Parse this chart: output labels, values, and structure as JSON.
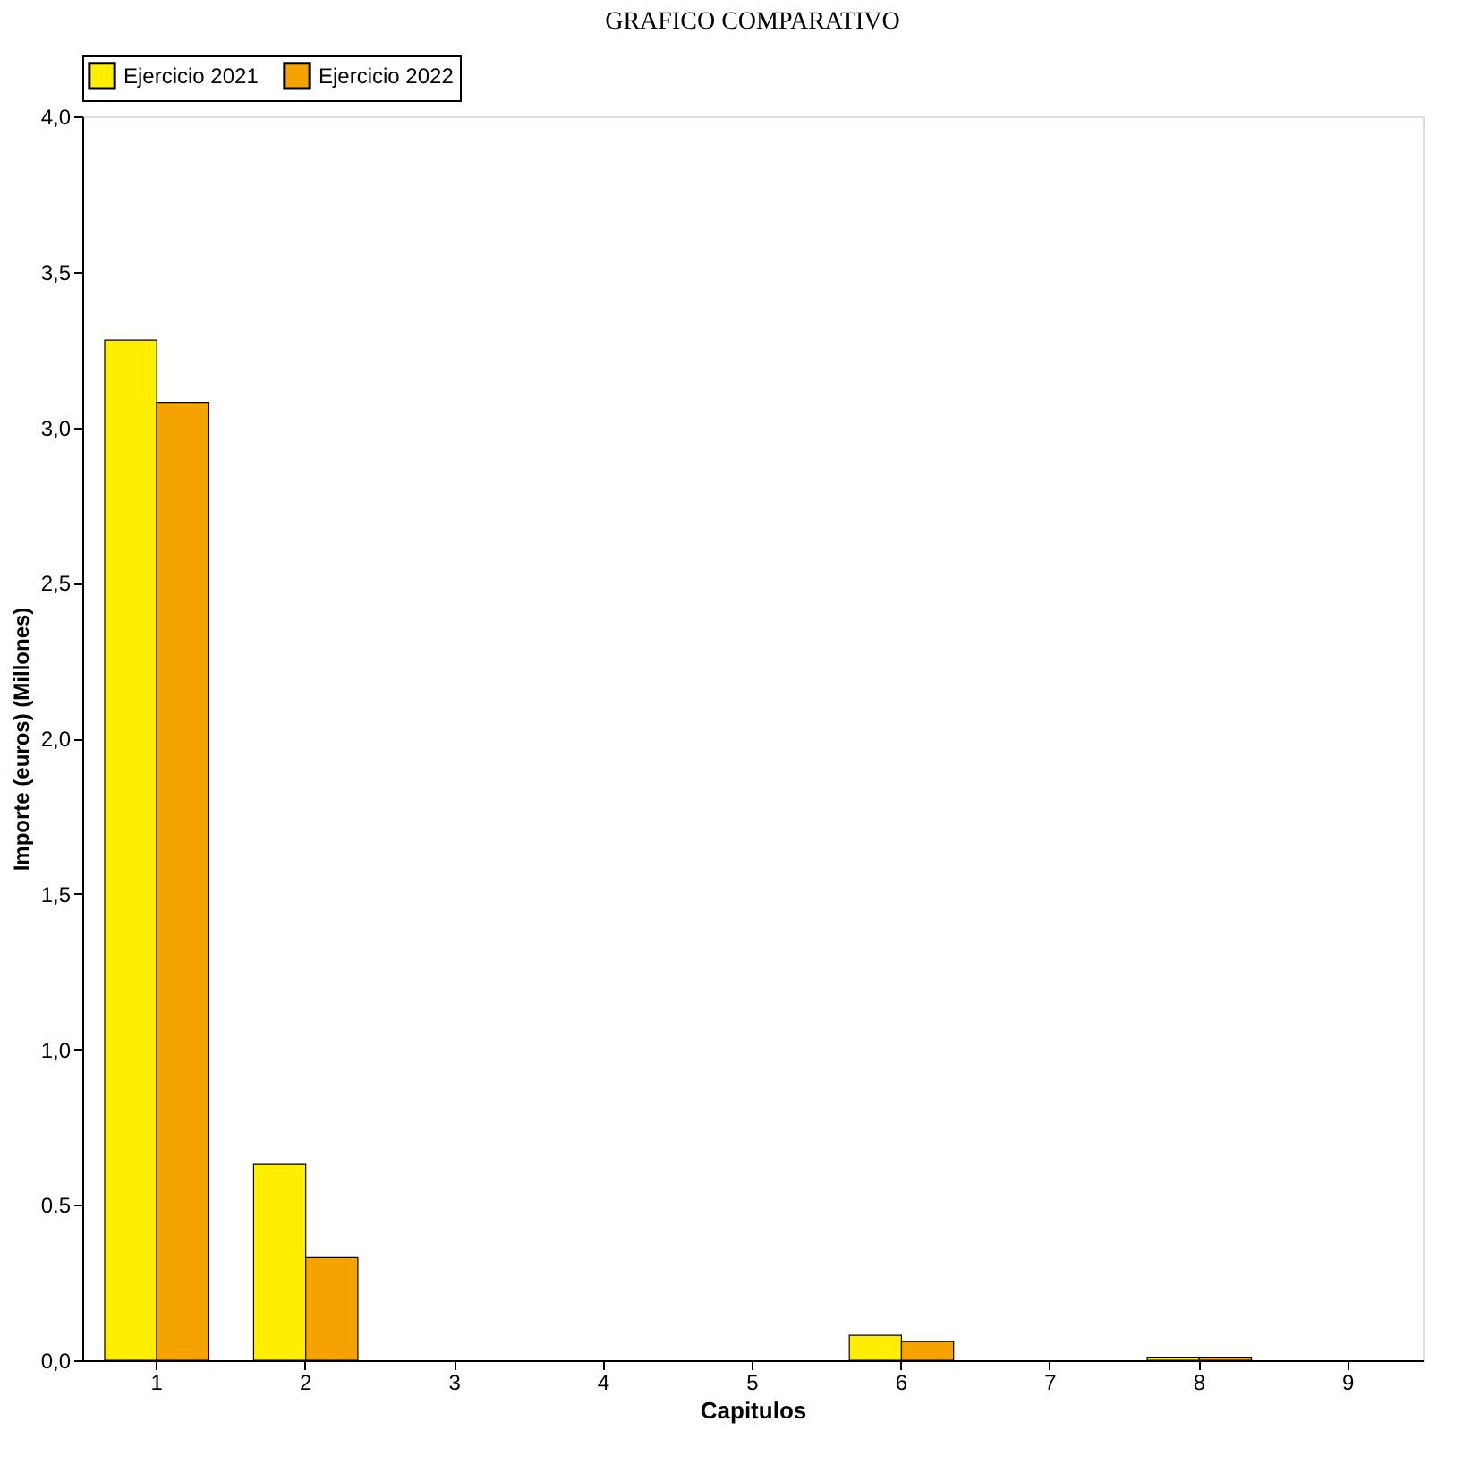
{
  "chart_data": {
    "type": "bar",
    "title": "GRAFICO COMPARATIVO",
    "xlabel": "Capitulos",
    "ylabel": "Importe (euros) (Millones)",
    "categories": [
      "1",
      "2",
      "3",
      "4",
      "5",
      "6",
      "7",
      "8",
      "9"
    ],
    "series": [
      {
        "name": "Ejercicio 2021",
        "color": "#ffee00",
        "values": [
          3.28,
          0.63,
          0,
          0,
          0,
          0.08,
          0,
          0.01,
          0
        ]
      },
      {
        "name": "Ejercicio 2022",
        "color": "#f5a300",
        "values": [
          3.08,
          0.33,
          0,
          0,
          0,
          0.06,
          0,
          0.01,
          0
        ]
      }
    ],
    "ylim": [
      0,
      4
    ],
    "yticks": [
      {
        "value": 0,
        "label": "0,0"
      },
      {
        "value": 0.5,
        "label": "0.5"
      },
      {
        "value": 1,
        "label": "1,0"
      },
      {
        "value": 1.5,
        "label": "1,5"
      },
      {
        "value": 2,
        "label": "2,0"
      },
      {
        "value": 2.5,
        "label": "2,5"
      },
      {
        "value": 3,
        "label": "3,0"
      },
      {
        "value": 3.5,
        "label": "3,5"
      },
      {
        "value": 4,
        "label": "4,0"
      }
    ],
    "grid": false,
    "legend": "top left"
  }
}
